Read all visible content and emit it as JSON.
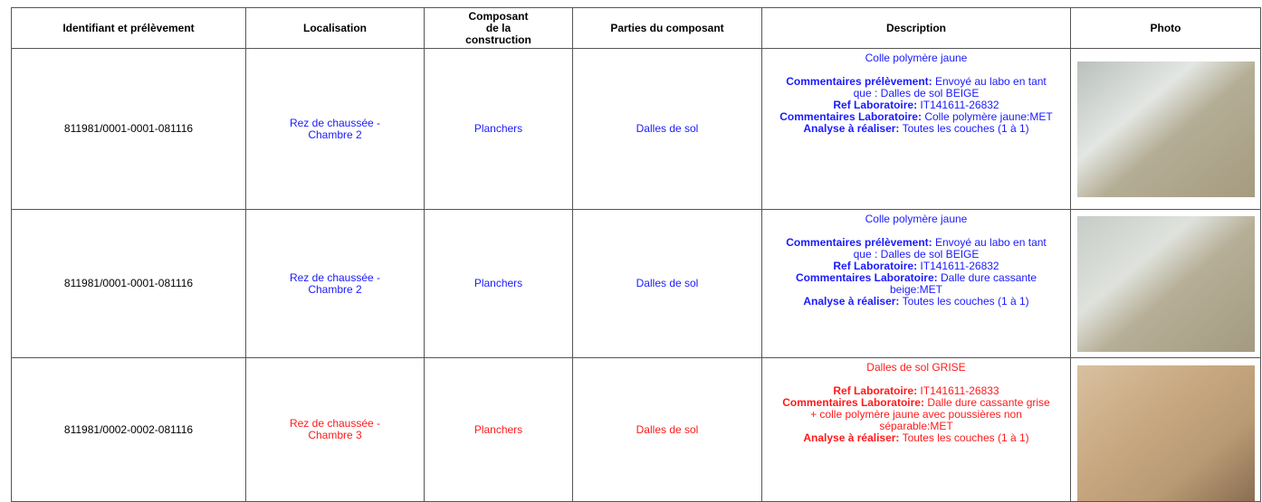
{
  "header": [
    "Identifiant et prélèvement",
    "Localisation",
    "Composant de la construction",
    "Parties du composant",
    "Description",
    "Photo"
  ],
  "rows": [
    {
      "color": "#1a1aff",
      "id": "811981/0001-0001-081116",
      "location": "Rez de chaussée - Chambre 2",
      "component": "Planchers",
      "part": "Dalles de sol",
      "summary": "Colle polymère jaune",
      "details": [
        {
          "label": "Commentaires prélèvement:",
          "text": "Envoyé au labo en tant que : Dalles de sol BEIGE"
        },
        {
          "label": "Ref Laboratoire:",
          "text": "IT141611-26832"
        },
        {
          "label": "Commentaires Laboratoire:",
          "text": "Colle polymère jaune:MET"
        },
        {
          "label": "Analyse à réaliser:",
          "text": "Toutes les couches (1 à 1)"
        }
      ]
    },
    {
      "color": "#1a1aff",
      "id": "811981/0001-0001-081116",
      "location": "Rez de chaussée - Chambre 2",
      "component": "Planchers",
      "part": "Dalles de sol",
      "summary": "Colle polymère jaune",
      "details": [
        {
          "label": "Commentaires prélèvement:",
          "text": "Envoyé au labo en tant que : Dalles de sol BEIGE"
        },
        {
          "label": "Ref Laboratoire:",
          "text": "IT141611-26832"
        },
        {
          "label": "Commentaires Laboratoire:",
          "text": "Dalle dure cassante beige:MET"
        },
        {
          "label": "Analyse à réaliser:",
          "text": "Toutes les couches (1 à 1)"
        }
      ]
    },
    {
      "color": "#ff1a1a",
      "id": "811981/0002-0002-081116",
      "location": "Rez de chaussée - Chambre 3",
      "component": "Planchers",
      "part": "Dalles de sol",
      "summary": "Dalles de sol GRISE",
      "details": [
        {
          "label": "Ref Laboratoire:",
          "text": "IT141611-26833"
        },
        {
          "label": "Commentaires Laboratoire:",
          "text": "Dalle dure cassante grise + colle polymère jaune avec poussières non séparable:MET"
        },
        {
          "label": "Analyse à réaliser:",
          "text": "Toutes les couches (1 à 1)"
        }
      ]
    }
  ]
}
